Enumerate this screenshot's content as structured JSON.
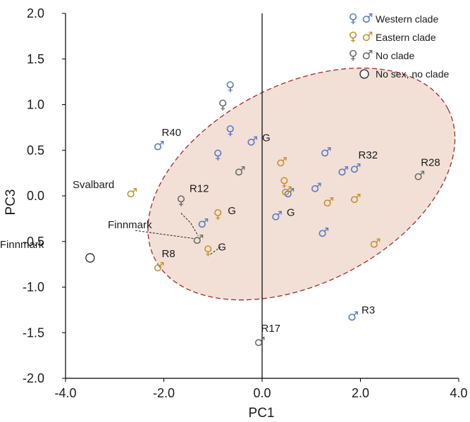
{
  "chart_data": {
    "type": "scatter",
    "title": "",
    "xlabel": "PC1",
    "ylabel": "PC3",
    "xlim": [
      -4.0,
      4.0
    ],
    "ylim": [
      -2.0,
      2.0
    ],
    "xticks": [
      "-4.0",
      "-2.0",
      "0.0",
      "2.0",
      "4.0"
    ],
    "yticks": [
      "2.0",
      "1.5",
      "1.0",
      "0.5",
      "0.0",
      "-0.5",
      "-1.0",
      "-1.5",
      "-2.0"
    ],
    "grid": false,
    "legend_position": "top-right",
    "colors": {
      "western": "#5b78c4",
      "eastern": "#c2922a",
      "noclade": "#6a6a6a",
      "nosex": "#222222",
      "ellipse_fill": "#f2e0d6",
      "ellipse_stroke": "#a0282e"
    },
    "legend": [
      {
        "key": "western",
        "symbols": "♀ ♂",
        "label": "Western clade"
      },
      {
        "key": "eastern",
        "symbols": "♀ ♂",
        "label": "Eastern clade"
      },
      {
        "key": "noclade",
        "symbols": "♀ ♂",
        "label": "No clade"
      },
      {
        "key": "nosex",
        "symbols": "○",
        "label": "No sex, no clade"
      }
    ],
    "ellipse": {
      "cx": 0.8,
      "cy": 0.13,
      "rx": 3.35,
      "ry": 1.09,
      "rotation_deg": -27
    },
    "points": [
      {
        "x": -2.1,
        "y": 0.55,
        "group": "western",
        "sex": "male",
        "label": "R40"
      },
      {
        "x": -0.9,
        "y": 0.45,
        "group": "western",
        "sex": "female"
      },
      {
        "x": -0.65,
        "y": 1.2,
        "group": "western",
        "sex": "female"
      },
      {
        "x": -0.65,
        "y": 0.72,
        "group": "western",
        "sex": "female"
      },
      {
        "x": -0.2,
        "y": 0.6,
        "group": "western",
        "sex": "male",
        "label": "G"
      },
      {
        "x": -1.2,
        "y": -0.3,
        "group": "western",
        "sex": "male"
      },
      {
        "x": 0.3,
        "y": -0.22,
        "group": "western",
        "sex": "male",
        "label": "G"
      },
      {
        "x": 0.55,
        "y": 0.03,
        "group": "western",
        "sex": "male"
      },
      {
        "x": 1.1,
        "y": 0.09,
        "group": "western",
        "sex": "male"
      },
      {
        "x": 1.3,
        "y": 0.48,
        "group": "western",
        "sex": "male"
      },
      {
        "x": 1.65,
        "y": 0.27,
        "group": "western",
        "sex": "male"
      },
      {
        "x": 1.9,
        "y": 0.3,
        "group": "western",
        "sex": "male",
        "label": "R32"
      },
      {
        "x": 1.25,
        "y": -0.4,
        "group": "western",
        "sex": "male"
      },
      {
        "x": 1.85,
        "y": -1.32,
        "group": "western",
        "sex": "male",
        "label": "R3"
      },
      {
        "x": -2.65,
        "y": 0.03,
        "group": "eastern",
        "sex": "male"
      },
      {
        "x": -2.1,
        "y": -0.78,
        "group": "eastern",
        "sex": "male",
        "label": "R8"
      },
      {
        "x": -0.9,
        "y": -0.2,
        "group": "eastern",
        "sex": "female",
        "label": "G"
      },
      {
        "x": -1.1,
        "y": -0.6,
        "group": "eastern",
        "sex": "female",
        "label": "G"
      },
      {
        "x": 0.4,
        "y": 0.37,
        "group": "eastern",
        "sex": "male"
      },
      {
        "x": 0.45,
        "y": 0.15,
        "group": "eastern",
        "sex": "female"
      },
      {
        "x": 0.5,
        "y": 0.05,
        "group": "eastern",
        "sex": "male"
      },
      {
        "x": 1.35,
        "y": -0.07,
        "group": "eastern",
        "sex": "male"
      },
      {
        "x": 1.9,
        "y": -0.03,
        "group": "eastern",
        "sex": "male"
      },
      {
        "x": 2.3,
        "y": -0.52,
        "group": "eastern",
        "sex": "male"
      },
      {
        "x": -0.8,
        "y": 1.0,
        "group": "noclade",
        "sex": "female"
      },
      {
        "x": -0.45,
        "y": 0.27,
        "group": "noclade",
        "sex": "male"
      },
      {
        "x": -1.65,
        "y": -0.05,
        "group": "noclade",
        "sex": "female",
        "label": "R12"
      },
      {
        "x": 3.2,
        "y": 0.22,
        "group": "noclade",
        "sex": "male",
        "label": "R28"
      },
      {
        "x": -0.05,
        "y": -1.6,
        "group": "noclade",
        "sex": "male",
        "label": "R17"
      },
      {
        "x": -1.3,
        "y": -0.48,
        "group": "noclade",
        "sex": "male"
      },
      {
        "x": -3.5,
        "y": -0.68,
        "group": "nosex",
        "sex": "none",
        "label": "Finnmark"
      }
    ],
    "annotations": [
      {
        "text": "Svalbard"
      },
      {
        "text": "Finnmark"
      }
    ]
  }
}
